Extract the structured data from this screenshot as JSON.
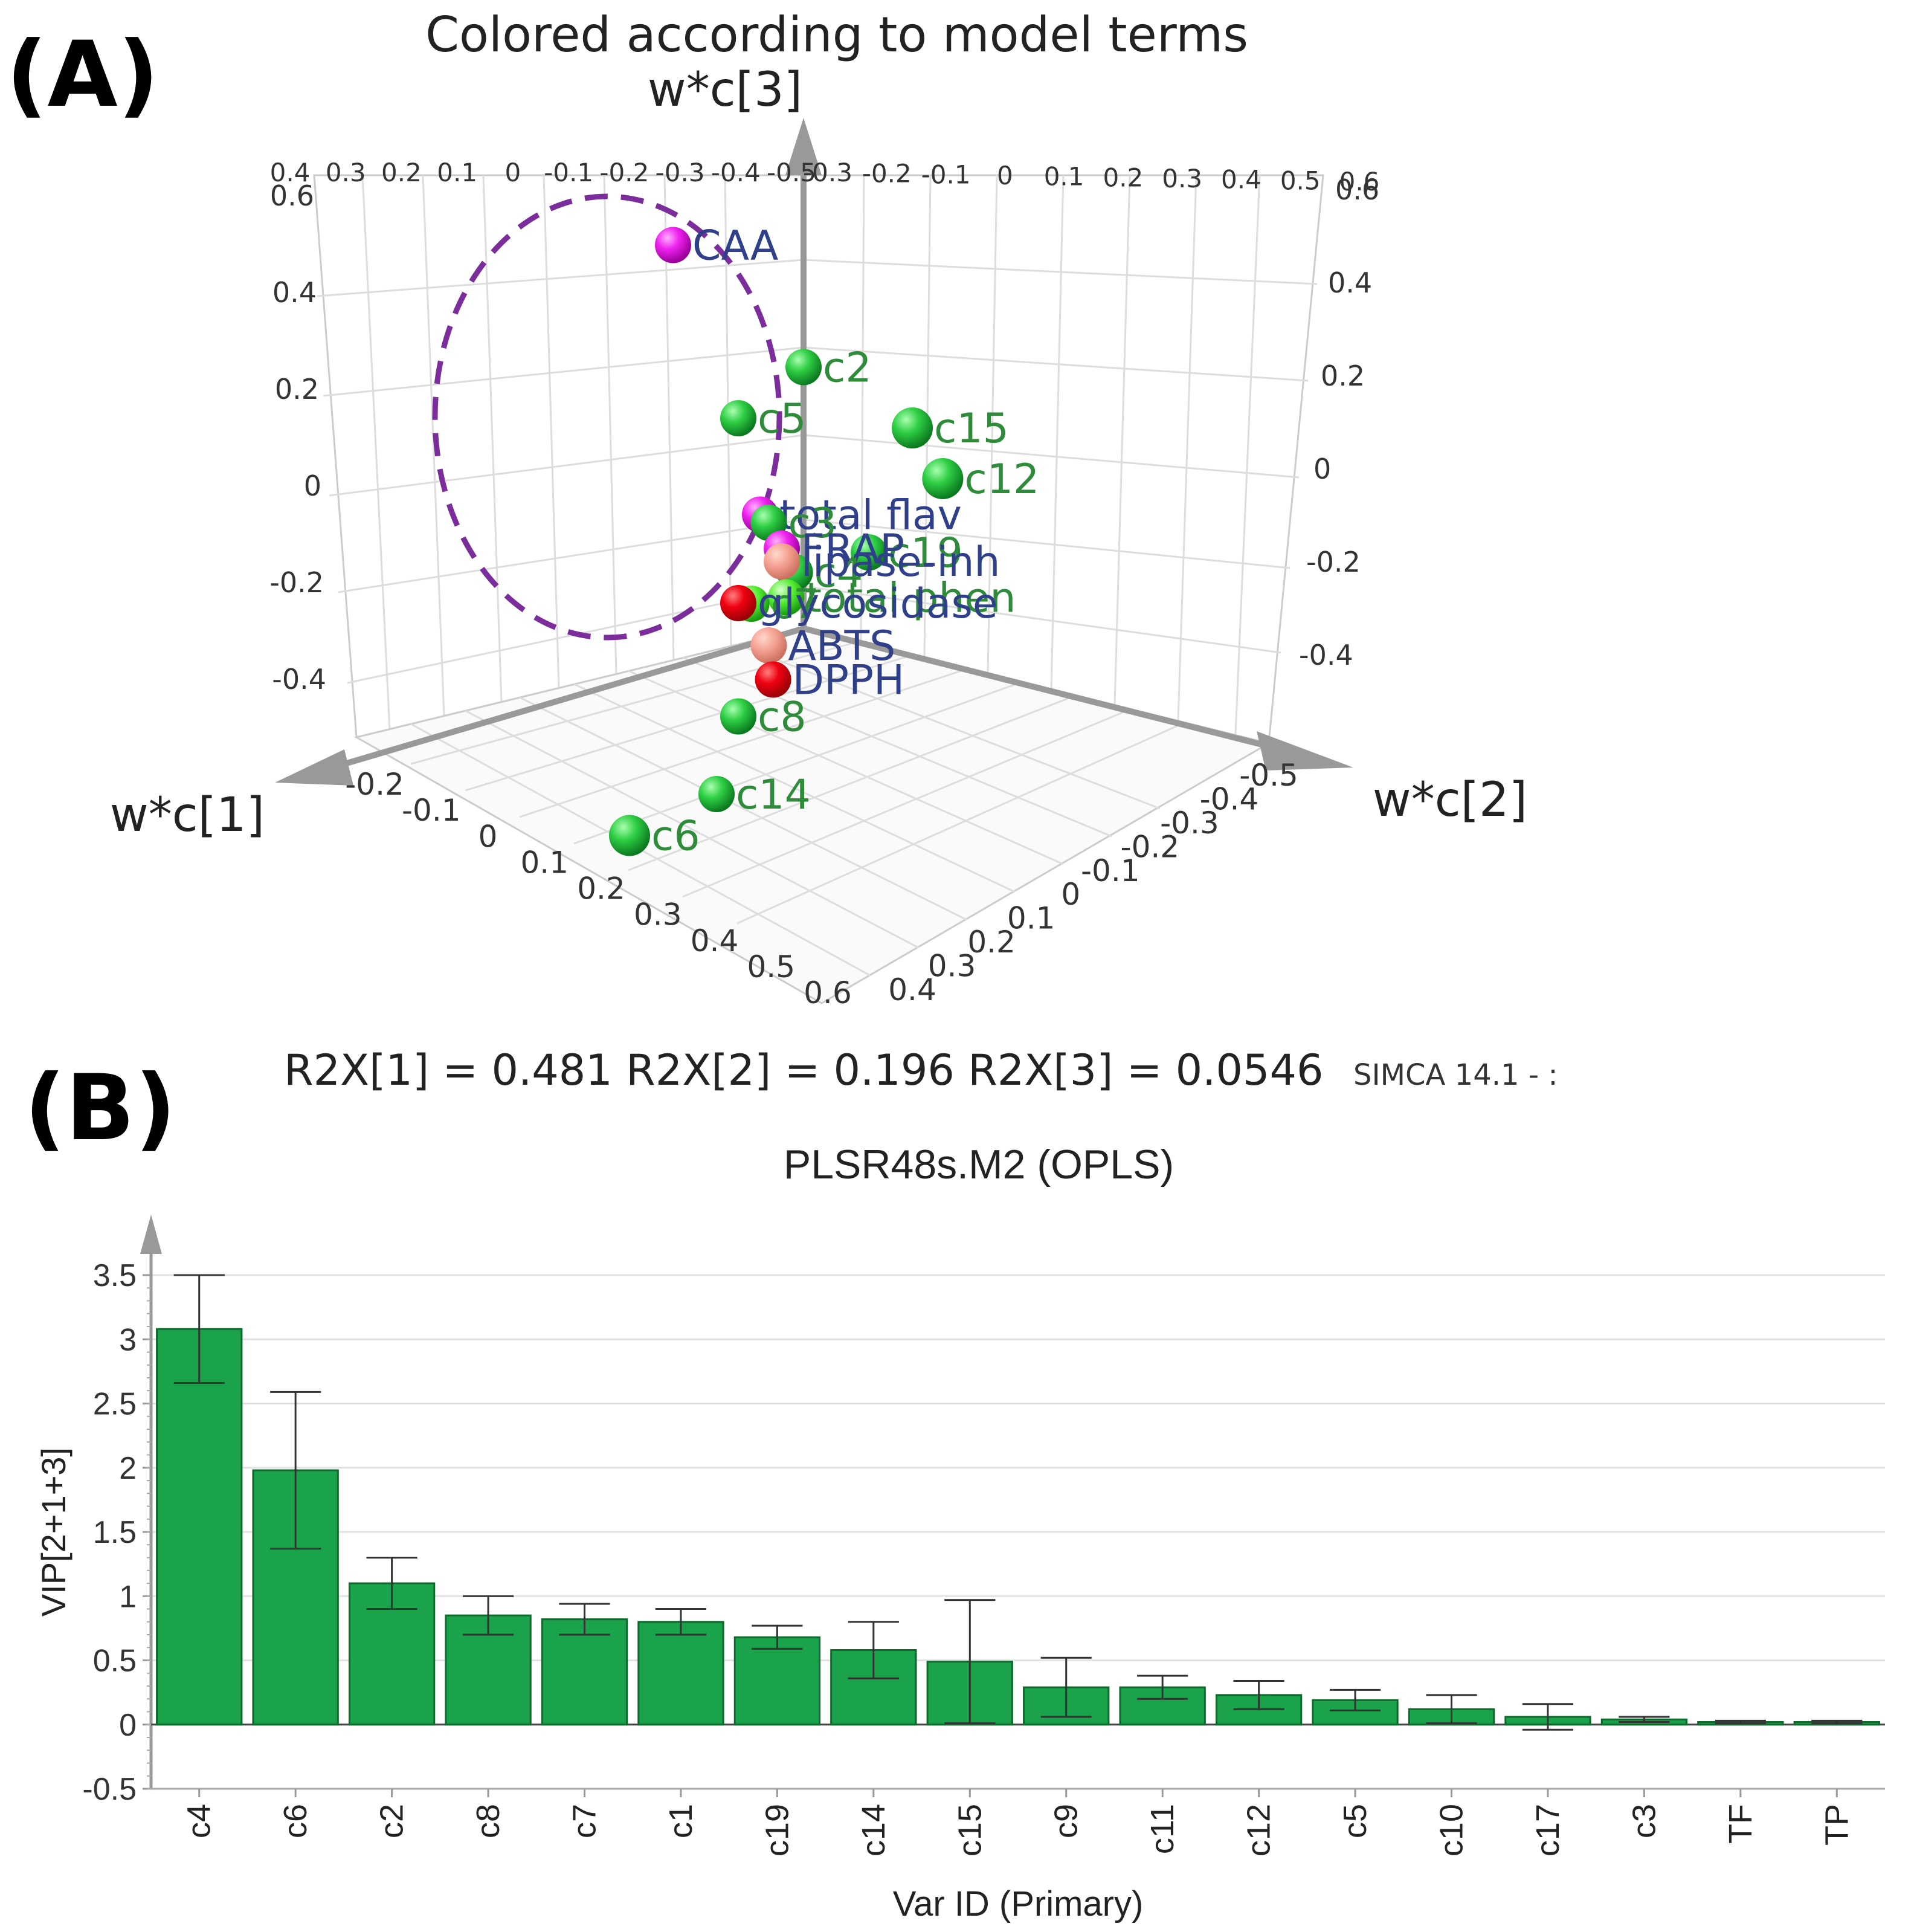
{
  "panel_a": {
    "letter": "(A)",
    "title": "Colored according to model terms",
    "axes": {
      "x": "w*c[1]",
      "y": "w*c[2]",
      "z": "w*c[3]"
    },
    "footer": {
      "r2x": "R2X[1] = 0.481   R2X[2] = 0.196   R2X[3] = 0.0546",
      "software": "SIMCA 14.1 - :"
    },
    "colors": {
      "compound": "#22bb33",
      "response": "#e000e0",
      "red": "#e8000a",
      "salmon": "#f4a090",
      "label_green": "#2e8b3a",
      "label_blue": "#2f3f8a",
      "ellipse": "#7b2d9c"
    }
  },
  "panel_b": {
    "letter": "(B)",
    "title": "PLSR48s.M2 (OPLS)",
    "bar_color": "#1aa34a"
  },
  "chart_data": [
    {
      "type": "scatter",
      "title": "Colored according to model terms",
      "xlabel": "w*c[1]",
      "ylabel": "w*c[2]",
      "zlabel": "w*c[3]",
      "x_ticks": [
        "-0.2",
        "-0.1",
        "0",
        "0.1",
        "0.2",
        "0.3",
        "0.4",
        "0.5",
        "0.6"
      ],
      "y_ticks": [
        "-0.5",
        "-0.4",
        "-0.3",
        "-0.2",
        "-0.1",
        "0",
        "0.1",
        "0.2",
        "0.3",
        "0.4"
      ],
      "z_ticks_left": [
        "0.6",
        "0.4",
        "0.2",
        "0",
        "-0.2",
        "-0.4"
      ],
      "z_ticks_right": [
        "0.6",
        "0.4",
        "0.2",
        "0",
        "-0.2",
        "-0.4"
      ],
      "back_top_ticks_left": [
        "0.4",
        "0.3",
        "0.2",
        "0.1",
        "0",
        "-0.1",
        "-0.2",
        "-0.3",
        "-0.4",
        "-0.5"
      ],
      "back_top_ticks_right": [
        "-0.3",
        "-0.2",
        "-0.1",
        "0",
        "0.1",
        "0.2",
        "0.3",
        "0.4",
        "0.5",
        "0.6"
      ],
      "points": [
        {
          "label": "CAA",
          "group": "response",
          "x": -0.05,
          "y": -0.35,
          "z": 0.55
        },
        {
          "label": "c2",
          "group": "compound",
          "x": 0.0,
          "y": 0.0,
          "z": 0.42
        },
        {
          "label": "c15",
          "group": "compound",
          "x": 0.05,
          "y": 0.3,
          "z": 0.38
        },
        {
          "label": "c12",
          "group": "compound",
          "x": 0.08,
          "y": 0.4,
          "z": 0.32
        },
        {
          "label": "c5",
          "group": "compound",
          "x": -0.1,
          "y": -0.25,
          "z": 0.28
        },
        {
          "label": "c19",
          "group": "compound",
          "x": 0.1,
          "y": 0.25,
          "z": 0.18
        },
        {
          "label": "total flav",
          "group": "response",
          "x": -0.05,
          "y": -0.15,
          "z": 0.15
        },
        {
          "label": "c3",
          "group": "compound",
          "x": -0.02,
          "y": -0.1,
          "z": 0.15
        },
        {
          "label": "FRAP",
          "group": "response",
          "x": 0.0,
          "y": -0.05,
          "z": 0.12
        },
        {
          "label": "c4",
          "group": "compound",
          "x": 0.1,
          "y": 0.08,
          "z": 0.12
        },
        {
          "label": "lipase-inh",
          "group": "red",
          "x": -0.15,
          "y": -0.2,
          "z": 0.05
        },
        {
          "label": "total phen",
          "group": "compound",
          "x": 0.02,
          "y": -0.02,
          "z": 0.05
        },
        {
          "label": "c7",
          "group": "compound",
          "x": 0.0,
          "y": -0.12,
          "z": 0.02
        },
        {
          "label": "glycosidase",
          "group": "red",
          "x": -0.2,
          "y": -0.35,
          "z": -0.05
        },
        {
          "label": "ABTS",
          "group": "red",
          "x": -0.12,
          "y": -0.2,
          "z": -0.08
        },
        {
          "label": "DPPH",
          "group": "red",
          "x": -0.08,
          "y": -0.15,
          "z": -0.12
        },
        {
          "label": "c8",
          "group": "compound",
          "x": 0.2,
          "y": 0.05,
          "z": -0.1
        },
        {
          "label": "c14",
          "group": "compound",
          "x": 0.3,
          "y": 0.1,
          "z": -0.2
        },
        {
          "label": "c6",
          "group": "compound",
          "x": 0.45,
          "y": 0.05,
          "z": -0.25
        }
      ]
    },
    {
      "type": "bar",
      "title": "PLSR48s.M2 (OPLS)",
      "xlabel": "Var ID (Primary)",
      "ylabel": "VIP[2+1+3]",
      "ylim": [
        -0.5,
        3.5
      ],
      "yticks": [
        "-0.5",
        "0",
        "0.5",
        "1",
        "1.5",
        "2",
        "2.5",
        "3",
        "3.5"
      ],
      "categories": [
        "c4",
        "c6",
        "c2",
        "c8",
        "c7",
        "c1",
        "c19",
        "c14",
        "c15",
        "c9",
        "c11",
        "c12",
        "c5",
        "c10",
        "c17",
        "c3",
        "TF",
        "TP"
      ],
      "values": [
        3.08,
        1.98,
        1.1,
        0.85,
        0.82,
        0.8,
        0.68,
        0.58,
        0.49,
        0.29,
        0.29,
        0.23,
        0.19,
        0.12,
        0.06,
        0.04,
        0.02,
        0.02
      ],
      "errors": [
        0.42,
        0.61,
        0.2,
        0.15,
        0.12,
        0.1,
        0.09,
        0.22,
        0.48,
        0.23,
        0.09,
        0.11,
        0.08,
        0.11,
        0.1,
        0.02,
        0.01,
        0.01
      ]
    }
  ]
}
